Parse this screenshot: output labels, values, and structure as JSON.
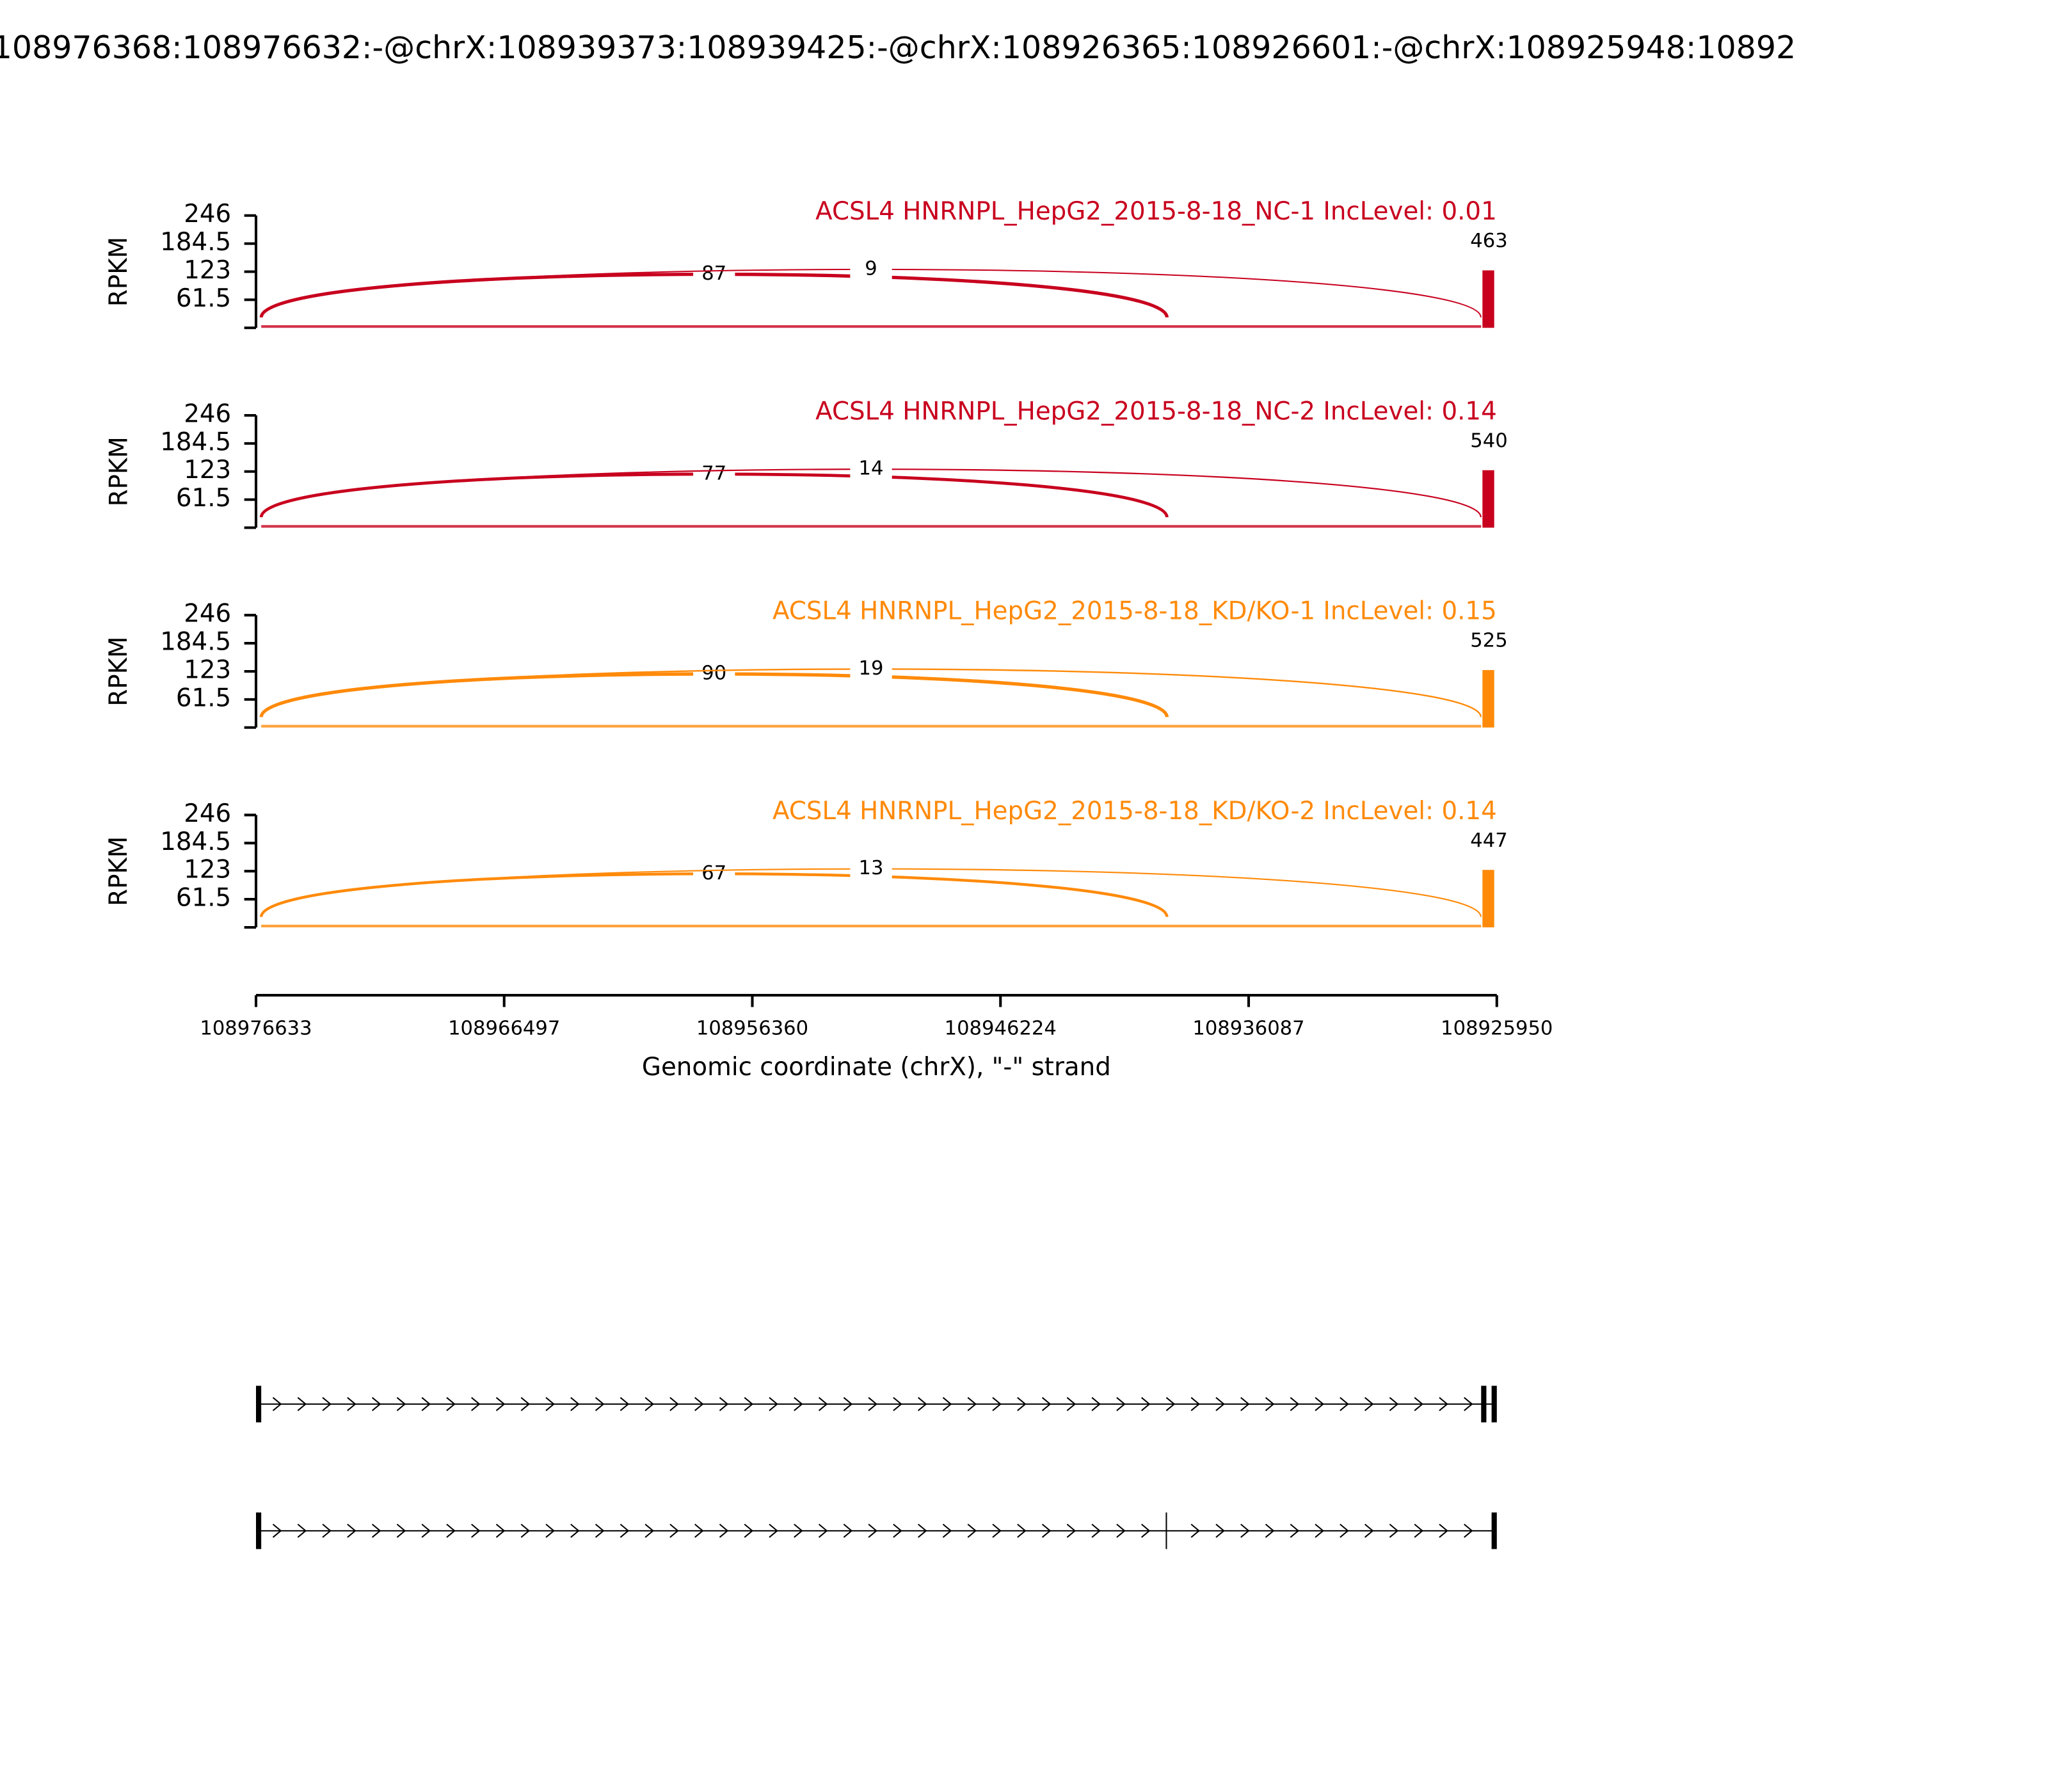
{
  "chart_data": {
    "type": "sashimi",
    "title": "108976368:108976632:-@chrX:108939373:108939425:-@chrX:108926365:108926601:-@chrX:108925948:10892",
    "xlabel": "Genomic coordinate (chrX), \"-\" strand",
    "xlim": [
      108976633,
      108925950
    ],
    "xticks": [
      108976633,
      108966497,
      108956360,
      108946224,
      108936087,
      108925950
    ],
    "panels": [
      {
        "title": "ACSL4 HNRNPL_HepG2_2015-8-18_NC-1 IncLevel: 0.01",
        "ylabel": "RPKM",
        "color": "#c8001e",
        "ylim": [
          0,
          246
        ],
        "yticks": [
          61.5,
          123,
          184.5,
          246
        ],
        "junctions": [
          {
            "start": 108976632,
            "end": 108939425,
            "count": 87
          },
          {
            "start": 108976632,
            "end": 108926601,
            "count": 9
          }
        ],
        "peak": 463
      },
      {
        "title": "ACSL4 HNRNPL_HepG2_2015-8-18_NC-2 IncLevel: 0.14",
        "ylabel": "RPKM",
        "color": "#c8001e",
        "ylim": [
          0,
          246
        ],
        "yticks": [
          61.5,
          123,
          184.5,
          246
        ],
        "junctions": [
          {
            "start": 108976632,
            "end": 108939425,
            "count": 77
          },
          {
            "start": 108976632,
            "end": 108926601,
            "count": 14
          }
        ],
        "peak": 540
      },
      {
        "title": "ACSL4 HNRNPL_HepG2_2015-8-18_KD/KO-1 IncLevel: 0.15",
        "ylabel": "RPKM",
        "color": "#ff8a0a",
        "ylim": [
          0,
          246
        ],
        "yticks": [
          61.5,
          123,
          184.5,
          246
        ],
        "junctions": [
          {
            "start": 108976632,
            "end": 108939425,
            "count": 90
          },
          {
            "start": 108976632,
            "end": 108926601,
            "count": 19
          }
        ],
        "peak": 525
      },
      {
        "title": "ACSL4 HNRNPL_HepG2_2015-8-18_KD/KO-2 IncLevel: 0.14",
        "ylabel": "RPKM",
        "color": "#ff8a0a",
        "ylim": [
          0,
          246
        ],
        "yticks": [
          61.5,
          123,
          184.5,
          246
        ],
        "junctions": [
          {
            "start": 108976632,
            "end": 108939425,
            "count": 67
          },
          {
            "start": 108976632,
            "end": 108926601,
            "count": 13
          }
        ],
        "peak": 447
      }
    ]
  }
}
